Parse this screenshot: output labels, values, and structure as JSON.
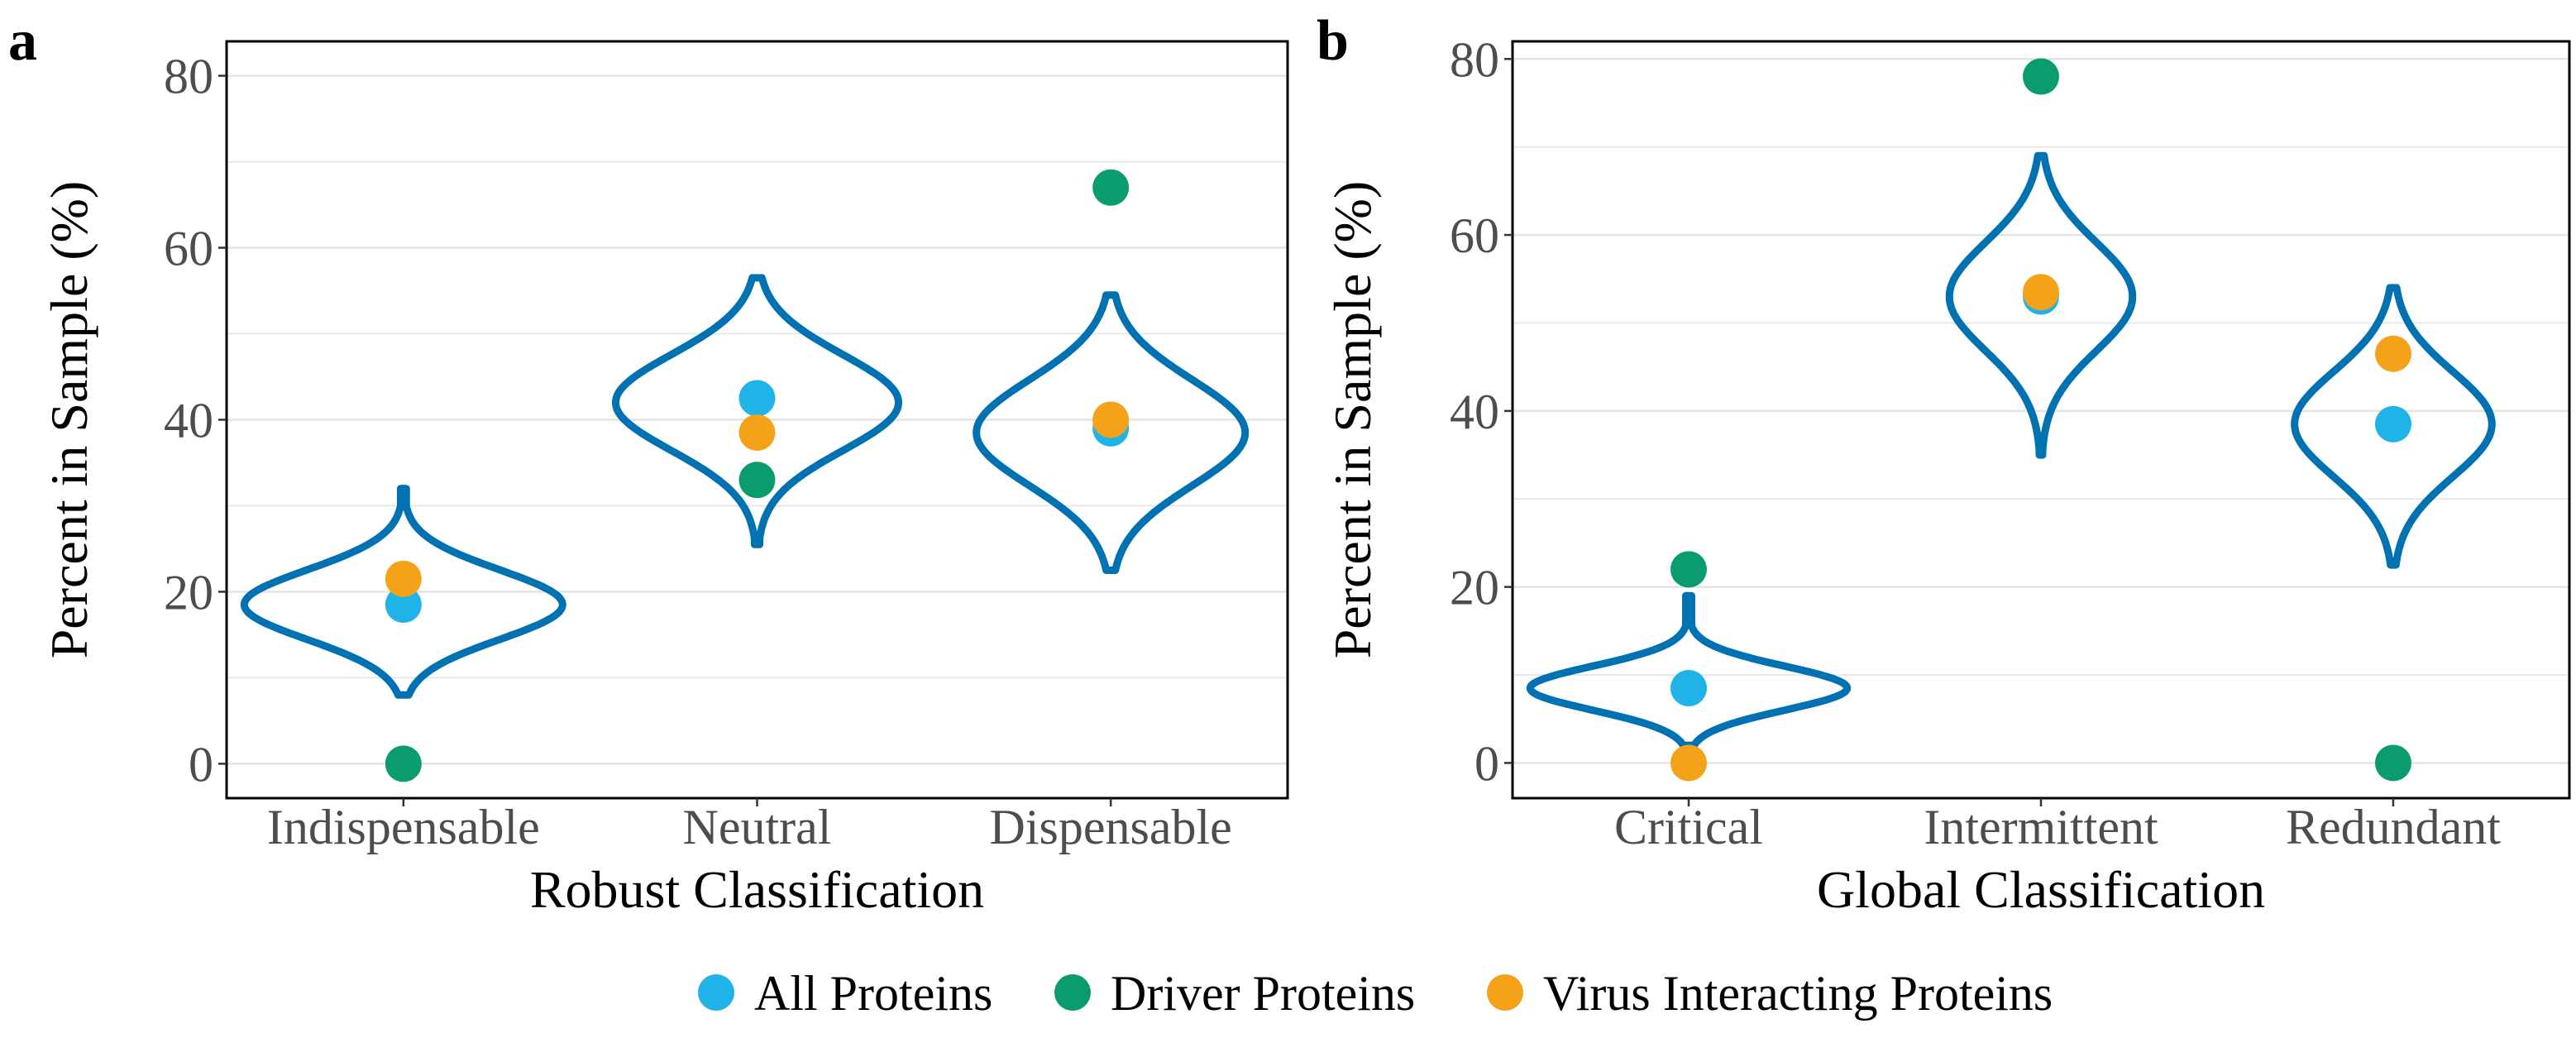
{
  "colors": {
    "violin": "#0072B2",
    "all": "#1FB3E8",
    "driver": "#0A9B6E",
    "virus": "#F5A21B",
    "grid": "#E3E3E3",
    "frame": "#000000",
    "tick_text": "#4D4D4D"
  },
  "legend": {
    "items": [
      {
        "key": "all",
        "label": "All Proteins"
      },
      {
        "key": "driver",
        "label": "Driver Proteins"
      },
      {
        "key": "virus",
        "label": "Virus Interacting Proteins"
      }
    ]
  },
  "chart_data": [
    {
      "panel_label": "a",
      "type": "violin-scatter",
      "xlabel": "Robust Classification",
      "ylabel": "Percent in Sample (%)",
      "ylim": [
        -4,
        84
      ],
      "yticks": [
        0,
        20,
        40,
        60,
        80
      ],
      "categories": [
        "Indispensable",
        "Neutral",
        "Dispensable"
      ],
      "violins": [
        {
          "category": "Indispensable",
          "min": 8,
          "max": 32,
          "center": 18.5,
          "halfwidth": 0.45
        },
        {
          "category": "Neutral",
          "min": 25.5,
          "max": 56.5,
          "center": 42,
          "halfwidth": 0.4
        },
        {
          "category": "Dispensable",
          "min": 22.5,
          "max": 54.5,
          "center": 38.5,
          "halfwidth": 0.38
        }
      ],
      "series": [
        {
          "name": "All Proteins",
          "key": "all",
          "values": [
            18.5,
            42.5,
            39
          ]
        },
        {
          "name": "Driver Proteins",
          "key": "driver",
          "values": [
            0,
            33,
            67
          ]
        },
        {
          "name": "Virus Interacting Proteins",
          "key": "virus",
          "values": [
            21.5,
            38.5,
            40
          ]
        }
      ]
    },
    {
      "panel_label": "b",
      "type": "violin-scatter",
      "xlabel": "Global Classification",
      "ylabel": "Percent in Sample (%)",
      "ylim": [
        -4,
        82
      ],
      "yticks": [
        0,
        20,
        40,
        60,
        80
      ],
      "categories": [
        "Critical",
        "Intermittent",
        "Redundant"
      ],
      "violins": [
        {
          "category": "Critical",
          "min": 2,
          "max": 19,
          "center": 8.5,
          "halfwidth": 0.45
        },
        {
          "category": "Intermittent",
          "min": 35,
          "max": 69,
          "center": 53,
          "halfwidth": 0.26
        },
        {
          "category": "Redundant",
          "min": 22.5,
          "max": 54,
          "center": 38.5,
          "halfwidth": 0.28
        }
      ],
      "series": [
        {
          "name": "All Proteins",
          "key": "all",
          "values": [
            8.5,
            53,
            38.5
          ]
        },
        {
          "name": "Driver Proteins",
          "key": "driver",
          "values": [
            22,
            78,
            0
          ]
        },
        {
          "name": "Virus Interacting Proteins",
          "key": "virus",
          "values": [
            0,
            53.5,
            46.5
          ]
        }
      ]
    }
  ]
}
